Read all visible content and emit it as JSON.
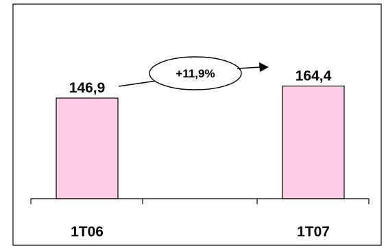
{
  "chart_data": {
    "type": "bar",
    "categories": [
      "1T06",
      "1T07"
    ],
    "values": [
      146.9,
      164.4
    ],
    "value_labels": [
      "146,9",
      "164,4"
    ],
    "annotation": "+11,9%",
    "title": "",
    "xlabel": "",
    "ylabel": "",
    "grid": false,
    "legend": "none",
    "colors": {
      "bar_fill": "#ffcce6",
      "outline": "#000000",
      "background": "#ffffff"
    }
  }
}
